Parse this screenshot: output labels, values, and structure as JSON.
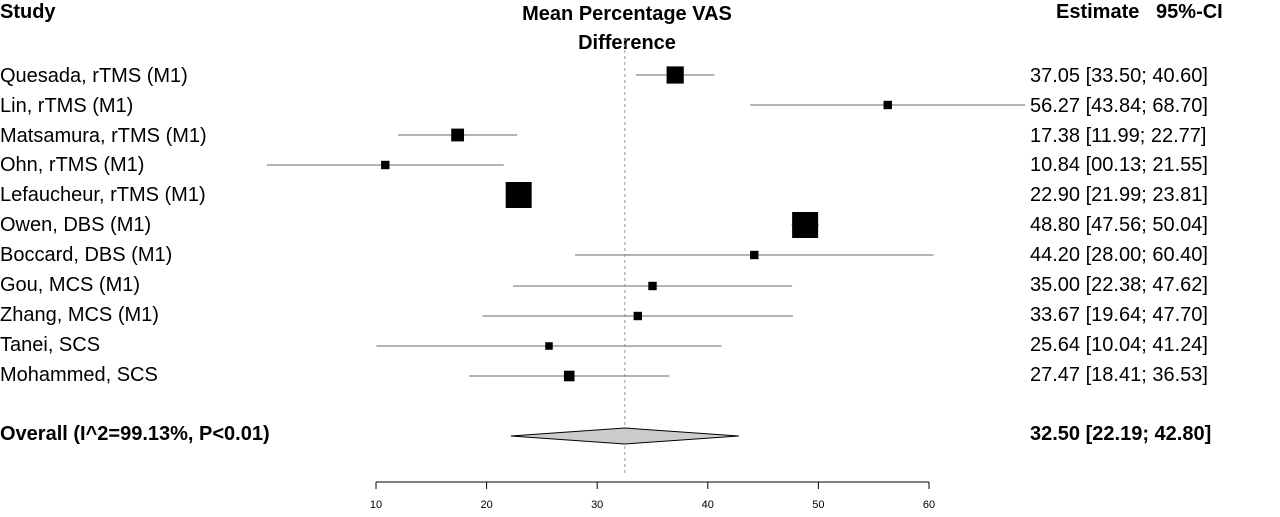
{
  "header": {
    "study": "Study",
    "title_line1": "Mean Percentage VAS",
    "title_line2": "Difference",
    "estimate": "Estimate   95%-CI"
  },
  "chart_data": {
    "type": "forest",
    "xlim": [
      10,
      60
    ],
    "xticks": [
      10,
      20,
      30,
      40,
      50,
      60
    ],
    "reference_line": 32.5,
    "studies": [
      {
        "label": "Quesada, rTMS (M1)",
        "estimate": 37.05,
        "lower": 33.5,
        "upper": 40.6,
        "ci_text": "37.05 [33.50; 40.60]",
        "weight": 3
      },
      {
        "label": "Lin, rTMS (M1)",
        "estimate": 56.27,
        "lower": 43.84,
        "upper": 68.7,
        "ci_text": "56.27 [43.84; 68.70]",
        "weight": 1
      },
      {
        "label": "Matsamura, rTMS (M1)",
        "estimate": 17.38,
        "lower": 11.99,
        "upper": 22.77,
        "ci_text": "17.38 [11.99; 22.77]",
        "weight": 2
      },
      {
        "label": "Ohn, rTMS (M1)",
        "estimate": 10.84,
        "lower": 0.13,
        "upper": 21.55,
        "ci_text": "10.84 [00.13; 21.55]",
        "weight": 1
      },
      {
        "label": "Lefaucheur, rTMS (M1)",
        "estimate": 22.9,
        "lower": 21.99,
        "upper": 23.81,
        "ci_text": "22.90 [21.99; 23.81]",
        "weight": 5
      },
      {
        "label": "Owen, DBS (M1)",
        "estimate": 48.8,
        "lower": 47.56,
        "upper": 50.04,
        "ci_text": "48.80 [47.56; 50.04]",
        "weight": 5
      },
      {
        "label": "Boccard, DBS (M1)",
        "estimate": 44.2,
        "lower": 28.0,
        "upper": 60.4,
        "ci_text": "44.20 [28.00; 60.40]",
        "weight": 1
      },
      {
        "label": "Gou, MCS (M1)",
        "estimate": 35.0,
        "lower": 22.38,
        "upper": 47.62,
        "ci_text": "35.00 [22.38; 47.62]",
        "weight": 1
      },
      {
        "label": "Zhang, MCS (M1)",
        "estimate": 33.67,
        "lower": 19.64,
        "upper": 47.7,
        "ci_text": "33.67 [19.64; 47.70]",
        "weight": 1
      },
      {
        "label": "Tanei, SCS",
        "estimate": 25.64,
        "lower": 10.04,
        "upper": 41.24,
        "ci_text": "25.64 [10.04; 41.24]",
        "weight": 0.8
      },
      {
        "label": "Mohammed, SCS",
        "estimate": 27.47,
        "lower": 18.41,
        "upper": 36.53,
        "ci_text": "27.47 [18.41; 36.53]",
        "weight": 1.5
      }
    ],
    "overall": {
      "label": "Overall (I^2=99.13%, P<0.01)",
      "estimate": 32.5,
      "lower": 22.19,
      "upper": 42.8,
      "ci_text": "32.50 [22.19; 42.80]"
    },
    "colors": {
      "line": "#000000",
      "ci_line": "#888888",
      "diamond_fill": "#cccccc",
      "ref_line": "#999999"
    }
  }
}
